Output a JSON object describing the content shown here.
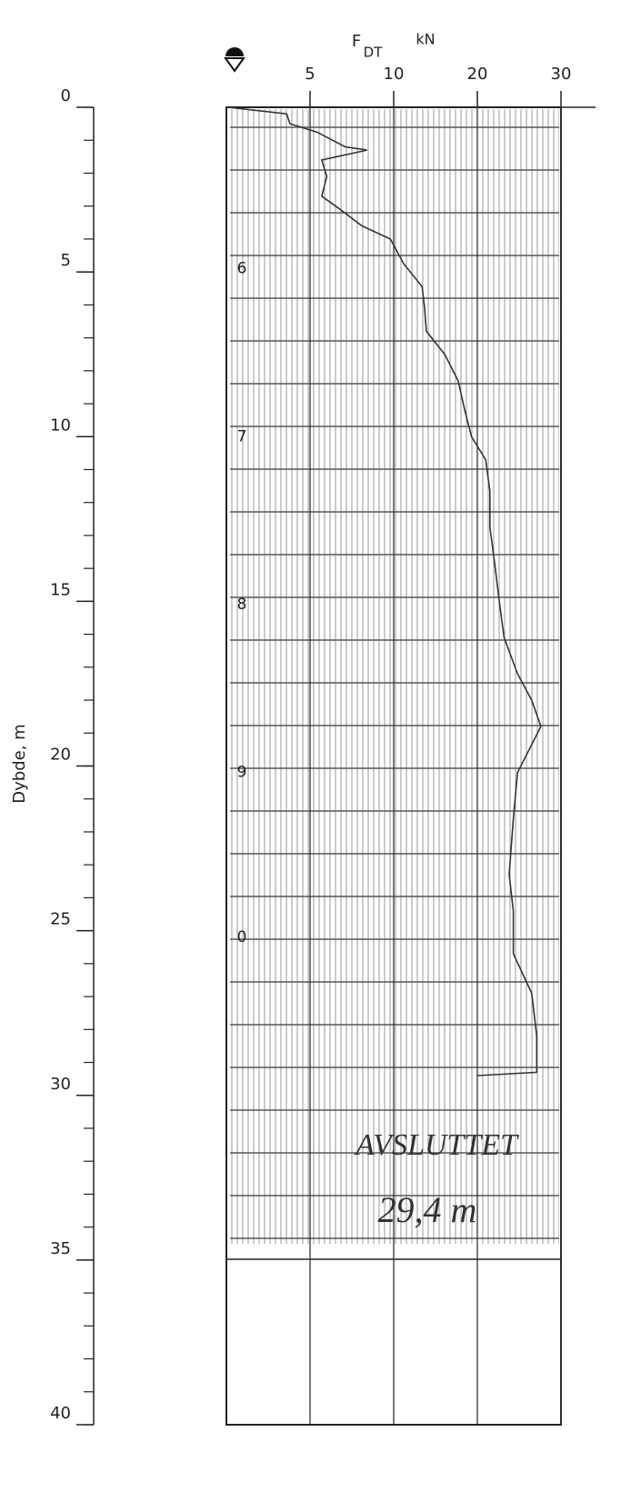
{
  "chart_data": {
    "type": "line",
    "x_label": "F",
    "x_label_subscript": "DT",
    "x_unit": "kN",
    "y_label": "Dybde, m",
    "xlim": [
      0,
      30
    ],
    "xticks": [
      5,
      10,
      20,
      30
    ],
    "ylim": [
      0,
      40
    ],
    "yticks": [
      0,
      5,
      10,
      15,
      20,
      25,
      30,
      35,
      40
    ],
    "y_minor_step": 1,
    "y_inverted": true,
    "series": [
      {
        "color": "#333333",
        "y": [
          0,
          0.2,
          0.5,
          0.75,
          1.2,
          1.3,
          1.6,
          2.1,
          2.7,
          3.1,
          3.6,
          4.0,
          4.75,
          5.45,
          6.1,
          6.8,
          7.5,
          8.3,
          9.2,
          10.0,
          10.7,
          11.65,
          12.75,
          13.9,
          14.95,
          16.1,
          17.2,
          18.0,
          18.8,
          20.2,
          21.6,
          23.3,
          24.4,
          25.7,
          26.9,
          28.2,
          29.3,
          29.4
        ],
        "values": [
          0.1,
          3.6,
          3.8,
          5.4,
          7.1,
          8.4,
          5.7,
          6.0,
          5.7,
          6.8,
          8.1,
          9.8,
          11.2,
          13.4,
          13.7,
          13.9,
          16.1,
          17.7,
          18.5,
          19.3,
          21,
          21.5,
          21.5,
          22.1,
          22.6,
          23.2,
          24.8,
          26.5,
          27.6,
          24.8,
          24.3,
          23.8,
          24.3,
          24.3,
          26.5,
          27.1,
          27.1,
          20
        ]
      }
    ],
    "rod_marks": [
      {
        "depth": 4.9,
        "label": "6"
      },
      {
        "depth": 10,
        "label": "7"
      },
      {
        "depth": 15.1,
        "label": "8"
      },
      {
        "depth": 20.2,
        "label": "9"
      },
      {
        "depth": 25.2,
        "label": "0"
      }
    ],
    "annotations": [
      "AVSLUTTET",
      "29,4 m"
    ]
  }
}
